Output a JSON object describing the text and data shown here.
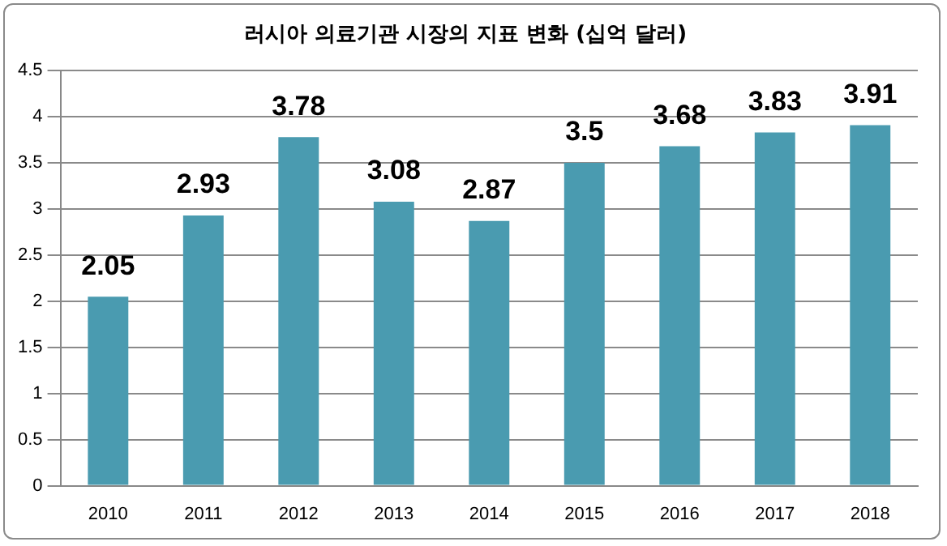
{
  "chart_data": {
    "type": "bar",
    "title": "러시아 의료기관 시장의 지표 변화 (십억 달러)",
    "categories": [
      "2010",
      "2011",
      "2012",
      "2013",
      "2014",
      "2015",
      "2016",
      "2017",
      "2018"
    ],
    "values": [
      2.05,
      2.93,
      3.78,
      3.08,
      2.87,
      3.5,
      3.68,
      3.83,
      3.91
    ],
    "color": "#4a9bb0",
    "ylim": [
      0,
      4.5
    ],
    "yticks": [
      0,
      0.5,
      1,
      1.5,
      2,
      2.5,
      3,
      3.5,
      4,
      4.5
    ],
    "grid": "y",
    "legend": false,
    "data_labels": true
  }
}
